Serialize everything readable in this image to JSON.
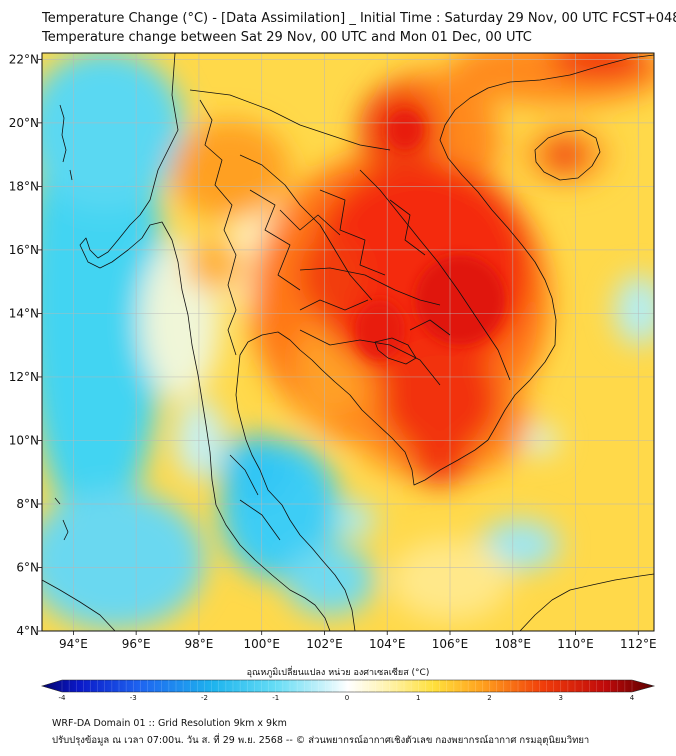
{
  "title": {
    "line1": "Temperature Change (°C) - [Data Assimilation] _ Initial Time : Saturday 29 Nov, 00 UTC FCST+048",
    "line2": "Temperature change between Sat 29 Nov, 00 UTC and Mon 01 Dec, 00 UTC"
  },
  "axes": {
    "x_ticks": [
      "94°E",
      "96°E",
      "98°E",
      "100°E",
      "102°E",
      "104°E",
      "106°E",
      "108°E",
      "110°E",
      "112°E"
    ],
    "x_values": [
      94,
      96,
      98,
      100,
      102,
      104,
      106,
      108,
      110,
      112
    ],
    "y_ticks": [
      "22°N",
      "20°N",
      "18°N",
      "16°N",
      "14°N",
      "12°N",
      "10°N",
      "8°N",
      "6°N",
      "4°N"
    ],
    "y_values": [
      22,
      20,
      18,
      16,
      14,
      12,
      10,
      8,
      6,
      4
    ],
    "lon_range": [
      93,
      112.5
    ],
    "lat_range": [
      4,
      22.2
    ]
  },
  "colorbar": {
    "title": "อุณหภูมิเปลี่ยนแปลง หน่วย องศาเซลเซียส (°C)",
    "tick_labels": [
      "-4",
      "-3",
      "-2",
      "-1",
      "0",
      "1",
      "2",
      "3",
      "4"
    ],
    "range": [
      -4,
      4
    ]
  },
  "footer": {
    "line1": "WRF-DA Domain 01 :: Grid Resolution 9km x 9km",
    "line2": "ปรับปรุงข้อมูล ณ เวลา 07:00น. วัน ส. ที่ 29 พ.ย. 2568 -- © ส่วนพยากรณ์อากาศเชิงตัวเลข กองพยากรณ์อากาศ กรมอุตุนิยมวิทยา"
  },
  "colors": {
    "background": "#ffd94a",
    "cold": "#33d6f5",
    "warm": "#ff8c1a",
    "hot": "#f01e0a",
    "coastline": "#111111"
  }
}
